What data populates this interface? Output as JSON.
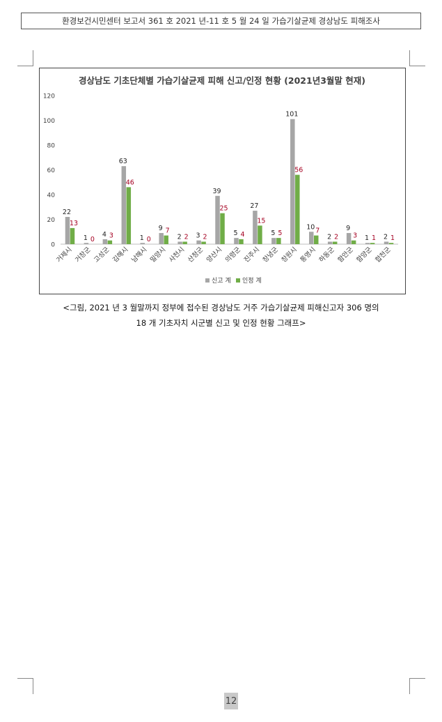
{
  "header": {
    "text": "환경보건시민센터 보고서 361 호 2021 년-11 호 5 월 24 일 가습기살균제 경상남도 피해조사"
  },
  "caption": {
    "line1": "<그림, 2021 년 3 월말까지 정부에 접수된 경상남도 거주 가습기살균제 피해신고자 306 명의",
    "line2": "18 개 기초자치 시군별 신고 및 인정 현황 그래프>"
  },
  "page_number": "12",
  "chart_data": {
    "type": "bar",
    "title": "경상남도 기초단체별 가습기살균제 피해 신고/인정 현황 (2021년3월말 현재)",
    "xlabel": "",
    "ylabel": "",
    "ylim": [
      0,
      120
    ],
    "yticks": [
      "0",
      "20",
      "40",
      "60",
      "80",
      "100",
      "120"
    ],
    "grid": false,
    "legend_position": "bottom",
    "categories": [
      "거제시",
      "거창군",
      "고성군",
      "김해시",
      "남해시",
      "밀양시",
      "사천시",
      "산청군",
      "양산시",
      "의령군",
      "진주시",
      "창녕군",
      "창원시",
      "통영시",
      "하동군",
      "함안군",
      "함양군",
      "합천군"
    ],
    "series": [
      {
        "name": "신고 계",
        "color": "#a6a6a6",
        "label_color": "#222222",
        "values": [
          22,
          1,
          4,
          63,
          1,
          9,
          2,
          3,
          39,
          5,
          27,
          5,
          101,
          10,
          2,
          9,
          1,
          2
        ]
      },
      {
        "name": "인정 계",
        "color": "#70ad47",
        "label_color": "#a50021",
        "values": [
          13,
          0,
          3,
          46,
          0,
          7,
          2,
          2,
          25,
          4,
          15,
          5,
          56,
          7,
          2,
          3,
          1,
          1
        ]
      }
    ]
  }
}
